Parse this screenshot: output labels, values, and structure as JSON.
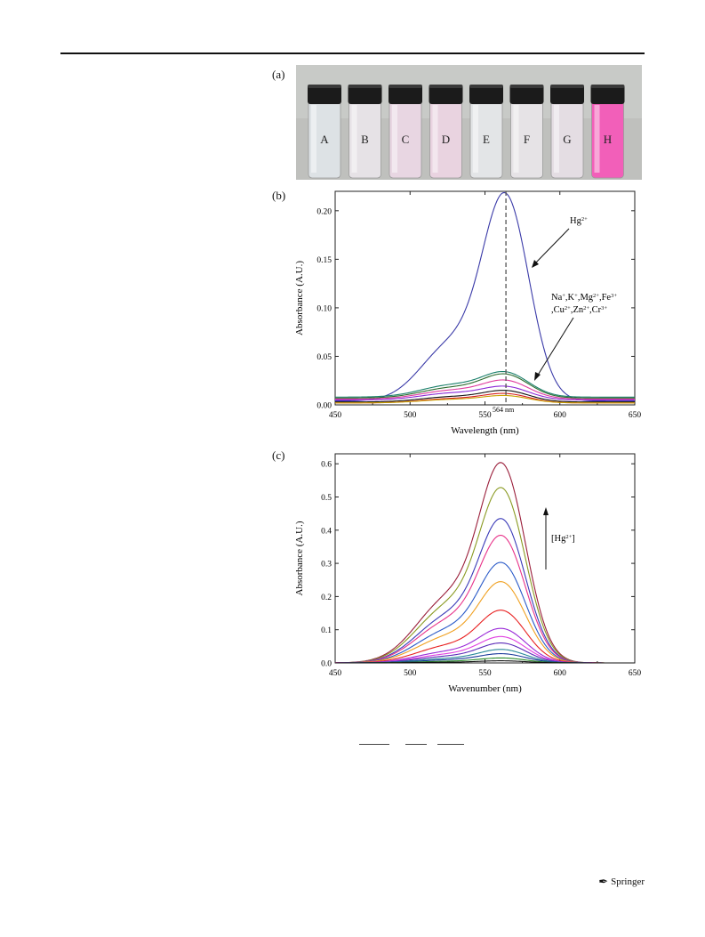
{
  "panels": {
    "a_label": "(a)",
    "b_label": "(b)",
    "c_label": "(c)"
  },
  "photo": {
    "vials": [
      {
        "label": "A",
        "liquid": "#dde2e5"
      },
      {
        "label": "B",
        "liquid": "#e6e2e6"
      },
      {
        "label": "C",
        "liquid": "#e8d6e2"
      },
      {
        "label": "D",
        "liquid": "#e9d3e0"
      },
      {
        "label": "E",
        "liquid": "#e3e5e7"
      },
      {
        "label": "F",
        "liquid": "#e6e3e6"
      },
      {
        "label": "G",
        "liquid": "#e4dde3"
      },
      {
        "label": "H",
        "liquid": "#f25fb9"
      }
    ],
    "background": "#bfc0bd"
  },
  "chart_data": [
    {
      "type": "line",
      "xlabel": "Wavelength (nm)",
      "ylabel": "Absorbance (A.U.)",
      "xlim": [
        450,
        650
      ],
      "ylim": [
        0,
        0.22
      ],
      "xticks": [
        450,
        500,
        550,
        600,
        650
      ],
      "yticks": [
        0.0,
        0.05,
        0.1,
        0.15,
        0.2
      ],
      "ytick_labels": [
        "0.00",
        "0.05",
        "0.10",
        "0.15",
        "0.20"
      ],
      "vline": {
        "x": 564,
        "label": "564 nm"
      },
      "annotations": [
        {
          "text": "Hg",
          "sup": "2+"
        },
        {
          "line1": [
            "Na",
            "+",
            ",K",
            "+",
            ",Mg",
            "2+",
            ",Fe",
            "3+"
          ],
          "line2": [
            ",Cu",
            "2+",
            ",Zn",
            "2+",
            ",Cr",
            "3+"
          ]
        }
      ],
      "series": [
        {
          "color": "#3a3aa8",
          "peak": 0.208,
          "shoulder": 0.066,
          "base": 0.004
        },
        {
          "color": "#1a7f6a",
          "peak": 0.032,
          "shoulder": 0.014,
          "base": 0.008
        },
        {
          "color": "#2d6b2f",
          "peak": 0.03,
          "shoulder": 0.012,
          "base": 0.007
        },
        {
          "color": "#e03c9e",
          "peak": 0.024,
          "shoulder": 0.01,
          "base": 0.006
        },
        {
          "color": "#8c2ad6",
          "peak": 0.018,
          "shoulder": 0.008,
          "base": 0.005
        },
        {
          "color": "#111111",
          "peak": 0.014,
          "shoulder": 0.006,
          "base": 0.003
        },
        {
          "color": "#d42020",
          "peak": 0.011,
          "shoulder": 0.005,
          "base": 0.002
        },
        {
          "color": "#c8a000",
          "peak": 0.009,
          "shoulder": 0.004,
          "base": 0.002
        }
      ]
    },
    {
      "type": "line",
      "xlabel": "Wavenumber (nm)",
      "ylabel": "Absorbance (A.U.)",
      "xlim": [
        450,
        650
      ],
      "ylim": [
        0,
        0.63
      ],
      "xticks": [
        450,
        500,
        550,
        600,
        650
      ],
      "yticks": [
        0.0,
        0.1,
        0.2,
        0.3,
        0.4,
        0.5,
        0.6
      ],
      "ytick_labels": [
        "0.0",
        "0.1",
        "0.2",
        "0.3",
        "0.4",
        "0.5",
        "0.6"
      ],
      "annotations": [
        {
          "text": "[Hg",
          "sup": "2+",
          "close": "]"
        }
      ],
      "series": [
        {
          "color": "#9a1e3a",
          "peak": 0.562
        },
        {
          "color": "#8a9a22",
          "peak": 0.492
        },
        {
          "color": "#3a3ab8",
          "peak": 0.405
        },
        {
          "color": "#e8338a",
          "peak": 0.358
        },
        {
          "color": "#2a5ac8",
          "peak": 0.282
        },
        {
          "color": "#f0a020",
          "peak": 0.228
        },
        {
          "color": "#e82020",
          "peak": 0.148
        },
        {
          "color": "#9a2ad8",
          "peak": 0.097
        },
        {
          "color": "#e040e0",
          "peak": 0.074
        },
        {
          "color": "#5a2ab8",
          "peak": 0.056
        },
        {
          "color": "#2a8a9a",
          "peak": 0.038
        },
        {
          "color": "#1a3a9a",
          "peak": 0.026
        },
        {
          "color": "#2a8a2a",
          "peak": 0.014
        },
        {
          "color": "#111111",
          "peak": 0.006
        }
      ]
    }
  ],
  "footer": {
    "publisher": "Springer"
  }
}
